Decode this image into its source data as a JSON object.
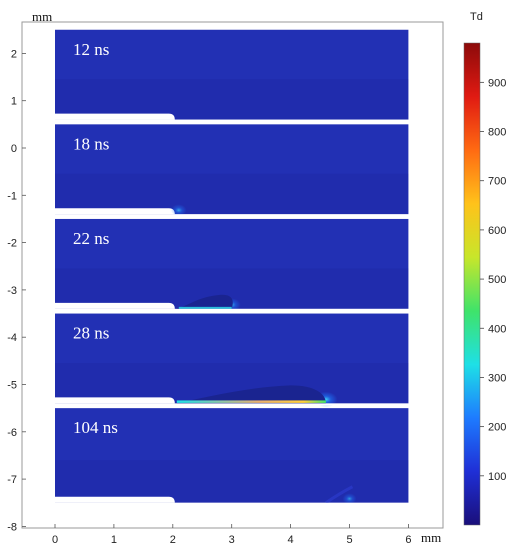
{
  "chart_data": {
    "type": "heatmap",
    "x_unit_label": "mm",
    "y_unit_label": "mm",
    "xlim": [
      -0.5,
      6.5
    ],
    "ylim": [
      -8.1,
      2.6
    ],
    "x_ticks": [
      0,
      1,
      2,
      3,
      4,
      5,
      6
    ],
    "y_ticks": [
      2,
      1,
      0,
      -1,
      -2,
      -3,
      -4,
      -5,
      -6,
      -7,
      -8
    ],
    "domain_x": [
      0,
      6
    ],
    "electrode_x_end": 2.0,
    "panels": [
      {
        "label": "12 ns",
        "y_top": 2.5,
        "y_bottom": 0.6,
        "streamer_tip_x": 2.0,
        "peak_value": 80
      },
      {
        "label": "18 ns",
        "y_top": 0.5,
        "y_bottom": -1.4,
        "streamer_tip_x": 2.1,
        "peak_value": 180
      },
      {
        "label": "22 ns",
        "y_top": -1.5,
        "y_bottom": -3.4,
        "streamer_tip_x": 3.0,
        "peak_value": 300
      },
      {
        "label": "28 ns",
        "y_top": -3.5,
        "y_bottom": -5.4,
        "streamer_tip_x": 4.6,
        "peak_value": 550
      },
      {
        "label": "104 ns",
        "y_top": -5.5,
        "y_bottom": -7.5,
        "streamer_tip_x": 5.0,
        "peak_value": 90
      }
    ],
    "colorbar": {
      "unit": "Td",
      "min": 0,
      "max": 980,
      "ticks": [
        100,
        200,
        300,
        400,
        500,
        600,
        700,
        800,
        900
      ],
      "colormap": [
        "#1a0f7a",
        "#1f2fd6",
        "#1e7bff",
        "#1ee0e6",
        "#3fe36a",
        "#c8e62a",
        "#ffc21a",
        "#ff6a12",
        "#e01a12",
        "#8c0a0a"
      ]
    },
    "background_color": "#2230b4"
  }
}
